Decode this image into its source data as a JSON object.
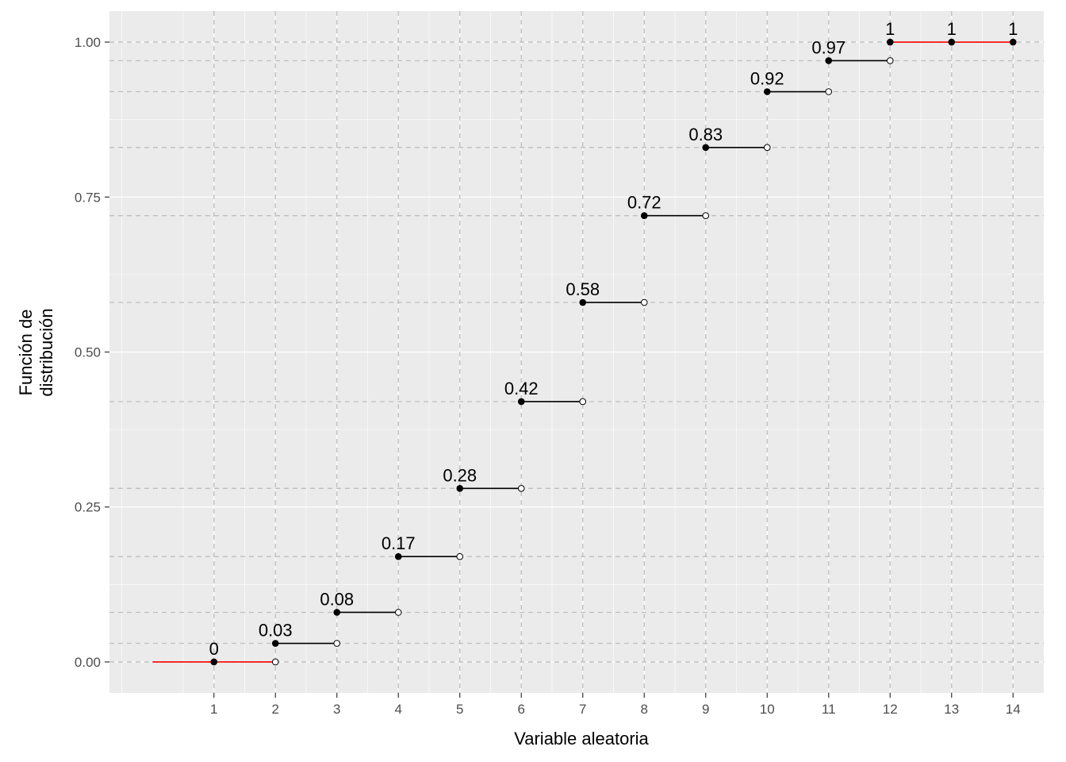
{
  "chart_data": {
    "type": "step",
    "xlabel": "Variable aleatoria",
    "ylabel_lines": [
      "Función de",
      "distribución"
    ],
    "xlim": [
      -0.7,
      14.5
    ],
    "ylim": [
      -0.05,
      1.05
    ],
    "x_ticks": [
      1,
      2,
      3,
      4,
      5,
      6,
      7,
      8,
      9,
      10,
      11,
      12,
      13,
      14
    ],
    "y_ticks": [
      {
        "value": 0.0,
        "label": "0.00"
      },
      {
        "value": 0.25,
        "label": "0.25"
      },
      {
        "value": 0.5,
        "label": "0.50"
      },
      {
        "value": 0.75,
        "label": "0.75"
      },
      {
        "value": 1.0,
        "label": "1.00"
      }
    ],
    "grid": true,
    "dashed_reference_lines": true,
    "steps": [
      {
        "x": 1,
        "x_end": 2,
        "y": 0.0,
        "label": "0"
      },
      {
        "x": 2,
        "x_end": 3,
        "y": 0.03,
        "label": "0.03"
      },
      {
        "x": 3,
        "x_end": 4,
        "y": 0.08,
        "label": "0.08"
      },
      {
        "x": 4,
        "x_end": 5,
        "y": 0.17,
        "label": "0.17"
      },
      {
        "x": 5,
        "x_end": 6,
        "y": 0.28,
        "label": "0.28"
      },
      {
        "x": 6,
        "x_end": 7,
        "y": 0.42,
        "label": "0.42"
      },
      {
        "x": 7,
        "x_end": 8,
        "y": 0.58,
        "label": "0.58"
      },
      {
        "x": 8,
        "x_end": 9,
        "y": 0.72,
        "label": "0.72"
      },
      {
        "x": 9,
        "x_end": 10,
        "y": 0.83,
        "label": "0.83"
      },
      {
        "x": 10,
        "x_end": 11,
        "y": 0.92,
        "label": "0.92"
      },
      {
        "x": 11,
        "x_end": 12,
        "y": 0.97,
        "label": "0.97"
      },
      {
        "x": 12,
        "y": 1.0,
        "label": "1"
      },
      {
        "x": 13,
        "y": 1.0,
        "label": "1"
      },
      {
        "x": 14,
        "y": 1.0,
        "label": "1"
      }
    ],
    "tail_segments": [
      {
        "x_start": 0,
        "x_end": 2,
        "y": 0.0
      },
      {
        "x_start": 12,
        "x_end": 14,
        "y": 1.0
      }
    ],
    "colors": {
      "panel": "#ebebeb",
      "grid_major": "#ffffff",
      "dashed": "#bebebe",
      "step_line": "#000000",
      "tail_line": "#ff0000",
      "point": "#000000"
    }
  }
}
